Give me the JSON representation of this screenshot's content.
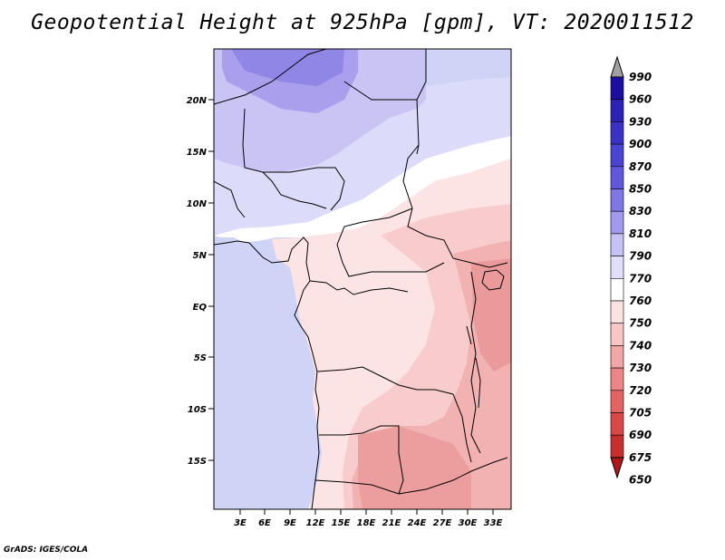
{
  "title": "Geopotential Height at 925hPa [gpm], VT: 2020011512",
  "credit": "GrADS: IGES/COLA",
  "map": {
    "lat_labels": [
      "20N",
      "15N",
      "10N",
      "5N",
      "EQ",
      "5S",
      "10S",
      "15S"
    ],
    "lon_labels": [
      "3E",
      "6E",
      "9E",
      "12E",
      "15E",
      "18E",
      "21E",
      "24E",
      "27E",
      "30E",
      "33E"
    ]
  },
  "colorbar": {
    "levels": [
      "990",
      "960",
      "930",
      "900",
      "870",
      "850",
      "830",
      "810",
      "790",
      "770",
      "760",
      "750",
      "740",
      "730",
      "720",
      "705",
      "690",
      "675",
      "650"
    ],
    "colors": [
      "#a0a0a0",
      "#1a0f9e",
      "#2a22b4",
      "#3a32c6",
      "#4a44d2",
      "#6058dc",
      "#8077e6",
      "#a099ee",
      "#c6c2f6",
      "#e0defa",
      "#ffffff",
      "#fde2e2",
      "#f9c6c6",
      "#f3a6a6",
      "#ec8686",
      "#e46464",
      "#d84848",
      "#c83030",
      "#b01818"
    ]
  },
  "colors": {
    "ocean": "#cfd3f5",
    "land_high": "#c9c4f4",
    "land_mid": "#dcdbfa",
    "land_white": "#ffffff",
    "land_pink_light": "#fde4e4",
    "land_pink": "#f8cccc",
    "land_pink_mid": "#f2b2b2",
    "land_red": "#ea9a9a"
  }
}
